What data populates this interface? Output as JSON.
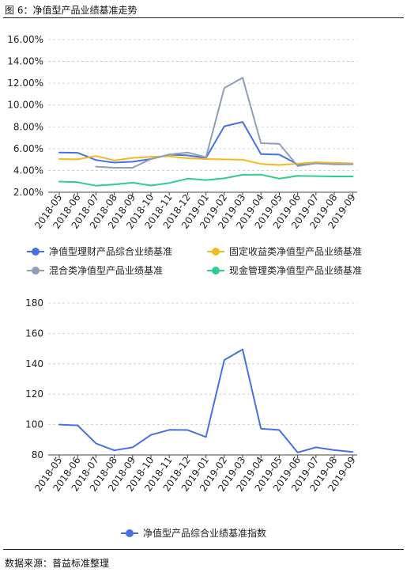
{
  "figure_title": "图 6：净值型产品业绩基准走势",
  "source": "数据来源：普益标准整理",
  "chart_data": [
    {
      "type": "line",
      "categories": [
        "2018-05",
        "2018-06",
        "2018-07",
        "2018-08",
        "2018-09",
        "2018-10",
        "2018-11",
        "2018-12",
        "2019-01",
        "2019-02",
        "2019-03",
        "2019-04",
        "2019-05",
        "2019-06",
        "2019-07",
        "2019-08",
        "2019-09"
      ],
      "yticks": [
        "2.00%",
        "4.00%",
        "6.00%",
        "8.00%",
        "10.00%",
        "12.00%",
        "14.00%",
        "16.00%"
      ],
      "ylim": [
        2,
        16
      ],
      "grid": true,
      "legend_position": "bottom",
      "series": [
        {
          "name": "净值型理财产品综合业绩基准",
          "color": "#4472e4",
          "values": [
            5.65,
            5.62,
            4.95,
            4.72,
            4.8,
            5.05,
            5.45,
            5.38,
            5.15,
            8.05,
            8.45,
            5.5,
            5.45,
            4.55,
            4.72,
            4.62,
            4.6
          ]
        },
        {
          "name": "固定收益类净值型产品业绩基准",
          "color": "#f5b920",
          "values": [
            5.05,
            5.02,
            5.32,
            4.92,
            5.15,
            5.25,
            5.3,
            5.12,
            5.05,
            5.02,
            4.98,
            4.6,
            4.5,
            4.62,
            4.75,
            4.7,
            4.65
          ]
        },
        {
          "name": "混合类净值型产品业绩基准",
          "color": "#8f9db8",
          "values": [
            null,
            null,
            4.35,
            4.25,
            4.25,
            5.05,
            5.45,
            5.65,
            5.2,
            11.55,
            12.5,
            6.5,
            6.45,
            4.4,
            4.65,
            4.55,
            4.55
          ]
        },
        {
          "name": "现金管理类净值型产品业绩基准",
          "color": "#2ecc8f",
          "values": [
            2.98,
            2.92,
            2.6,
            2.72,
            2.88,
            2.62,
            2.85,
            3.25,
            3.12,
            3.28,
            3.6,
            3.62,
            3.25,
            3.5,
            3.48,
            3.45,
            3.45
          ]
        }
      ]
    },
    {
      "type": "line",
      "categories": [
        "2018-05",
        "2018-06",
        "2018-07",
        "2018-08",
        "2018-09",
        "2018-10",
        "2018-11",
        "2018-12",
        "2019-01",
        "2019-02",
        "2019-03",
        "2019-04",
        "2019-05",
        "2019-06",
        "2019-07",
        "2019-08",
        "2019-09"
      ],
      "yticks": [
        "80",
        "100",
        "120",
        "140",
        "160",
        "180"
      ],
      "ylim": [
        80,
        180
      ],
      "grid": true,
      "legend_position": "bottom",
      "series": [
        {
          "name": "净值型产品综合业绩基准指数",
          "color": "#4472e4",
          "values": [
            100,
            99.5,
            87.6,
            83,
            85,
            93.2,
            96.5,
            96.4,
            91.8,
            142.5,
            149.5,
            97.3,
            96.4,
            81.6,
            85,
            83.2,
            82
          ]
        }
      ]
    }
  ]
}
